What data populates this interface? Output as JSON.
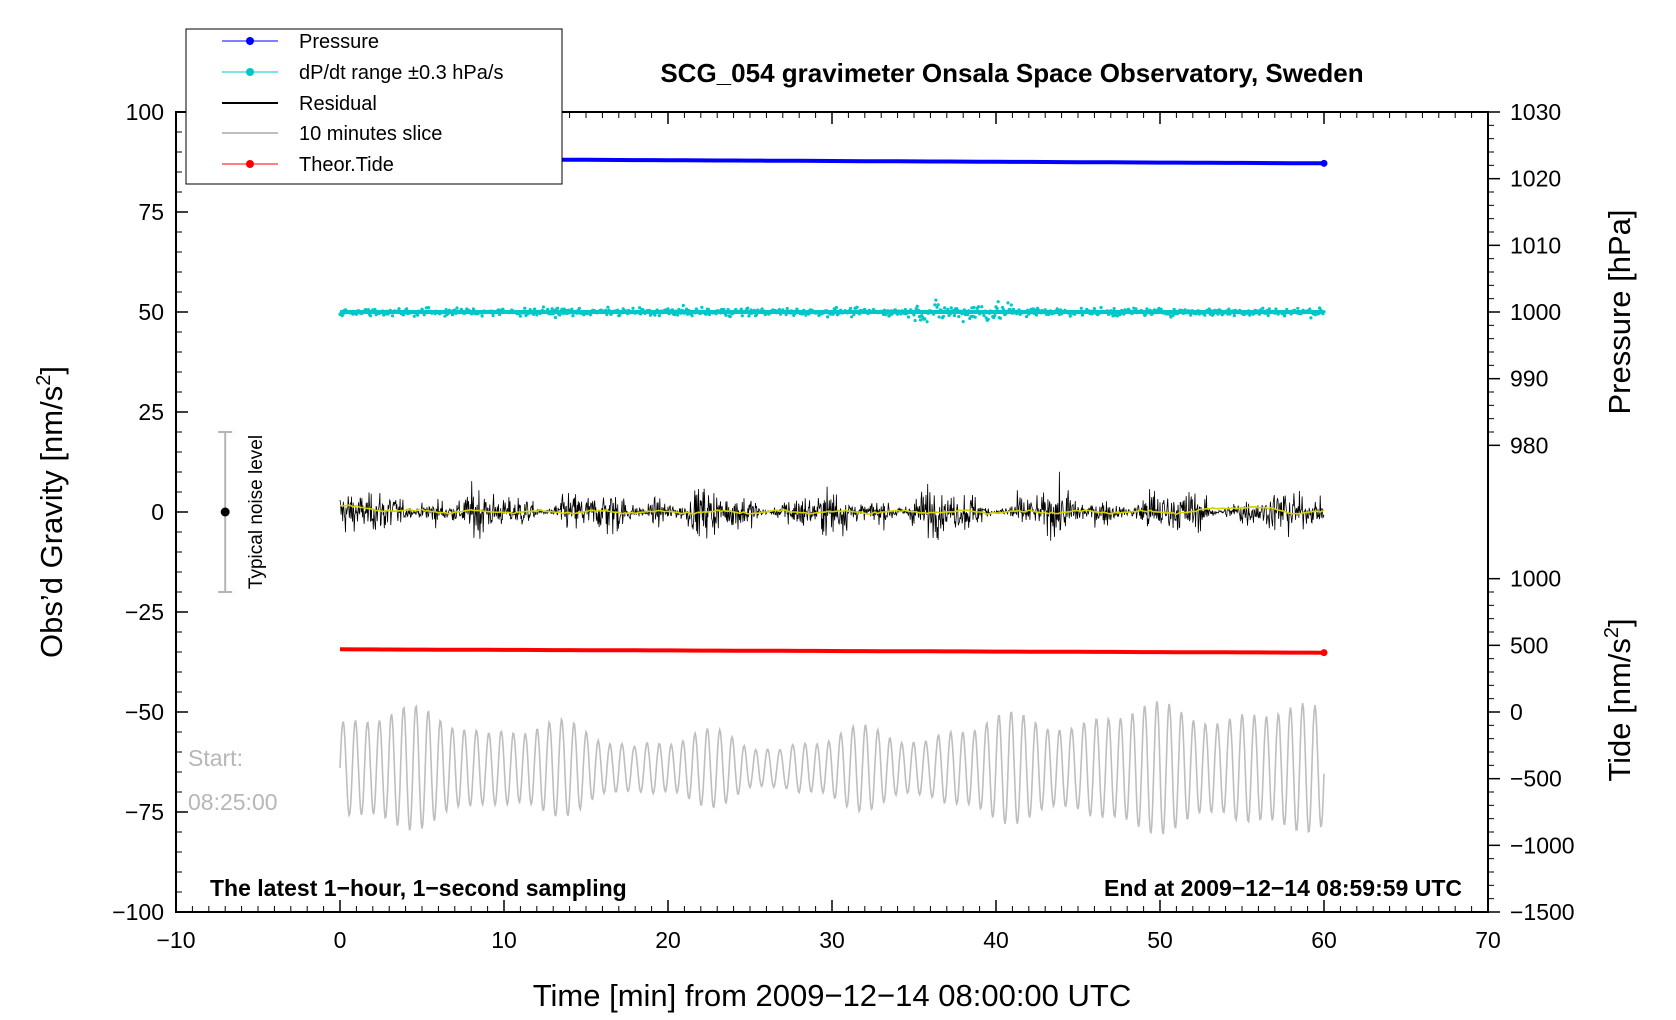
{
  "chart_data": {
    "type": "line",
    "title": "SCG_054 gravimeter Onsala Space Observatory, Sweden",
    "xlabel": "Time [min] from 2009−12−14 08:00:00 UTC",
    "ylabel_left": "Obs’d Gravity [nm/s",
    "ylabel_left_sup": "2",
    "ylabel_left_end": "]",
    "ylabel_right_pressure": "Pressure [hPa]",
    "ylabel_right_tide": "Tide [nm/s",
    "ylabel_right_tide_sup": "2",
    "ylabel_right_tide_end": "]",
    "xlim": [
      -10,
      70
    ],
    "ylim_left": [
      -100,
      100
    ],
    "x_ticks": [
      -10,
      0,
      10,
      20,
      30,
      40,
      50,
      60,
      70
    ],
    "x_tick_labels": [
      "−10",
      "0",
      "10",
      "20",
      "30",
      "40",
      "50",
      "60",
      "70"
    ],
    "y_ticks_left": [
      -100,
      -75,
      -50,
      -25,
      0,
      25,
      50,
      75,
      100
    ],
    "y_tick_labels_left": [
      "−100",
      "−75",
      "−50",
      "−25",
      "0",
      "25",
      "50",
      "75",
      "100"
    ],
    "pressure_axis": {
      "ticks": [
        980,
        990,
        1000,
        1010,
        1020,
        1030
      ],
      "tick_labels": [
        "980",
        "990",
        "1000",
        "1010",
        "1020",
        "1030"
      ],
      "maps_to_left": {
        "1000": 50,
        "1030": 100
      }
    },
    "tide_axis": {
      "ticks": [
        -1500,
        -1000,
        -500,
        0,
        500,
        1000
      ],
      "tick_labels": [
        "−1500",
        "−1000",
        "−500",
        "0",
        "500",
        "1000"
      ],
      "maps_to_left": {
        "0": -50,
        "1000": -16.7
      }
    },
    "series": [
      {
        "name": "Pressure",
        "color": "#0000ff",
        "axis": "pressure",
        "x_range": [
          0,
          60
        ],
        "start": 1023.0,
        "end": 1022.3
      },
      {
        "name": "dP/dt range ±0.3 hPa/s",
        "color": "#00c8c8",
        "axis": "left",
        "x_range": [
          0,
          60
        ],
        "center": 50,
        "spread": 2
      },
      {
        "name": "Residual",
        "color": "#000000",
        "axis": "left",
        "x_range": [
          0,
          60
        ],
        "center": 0,
        "spread": 15
      },
      {
        "name": "10 minutes slice",
        "color": "#bebebe",
        "axis": "left",
        "x_range": [
          0,
          60
        ],
        "center": -64,
        "spread": 12
      },
      {
        "name": "Theor.Tide",
        "color": "#ff0000",
        "axis": "tide",
        "x_range": [
          0,
          60
        ],
        "start": 470,
        "end": 445
      }
    ],
    "running_mean": {
      "color": "#d2d200",
      "center": 0
    },
    "noise_bar": {
      "x": -7,
      "center": 0,
      "low": -20,
      "high": 20,
      "label": "Typical noise level"
    },
    "start_label_1": "Start:",
    "start_label_2": "08:25:00",
    "bottom_left_note": "The latest 1−hour, 1−second sampling",
    "bottom_right_note": "End at 2009−12−14 08:59:59 UTC"
  }
}
